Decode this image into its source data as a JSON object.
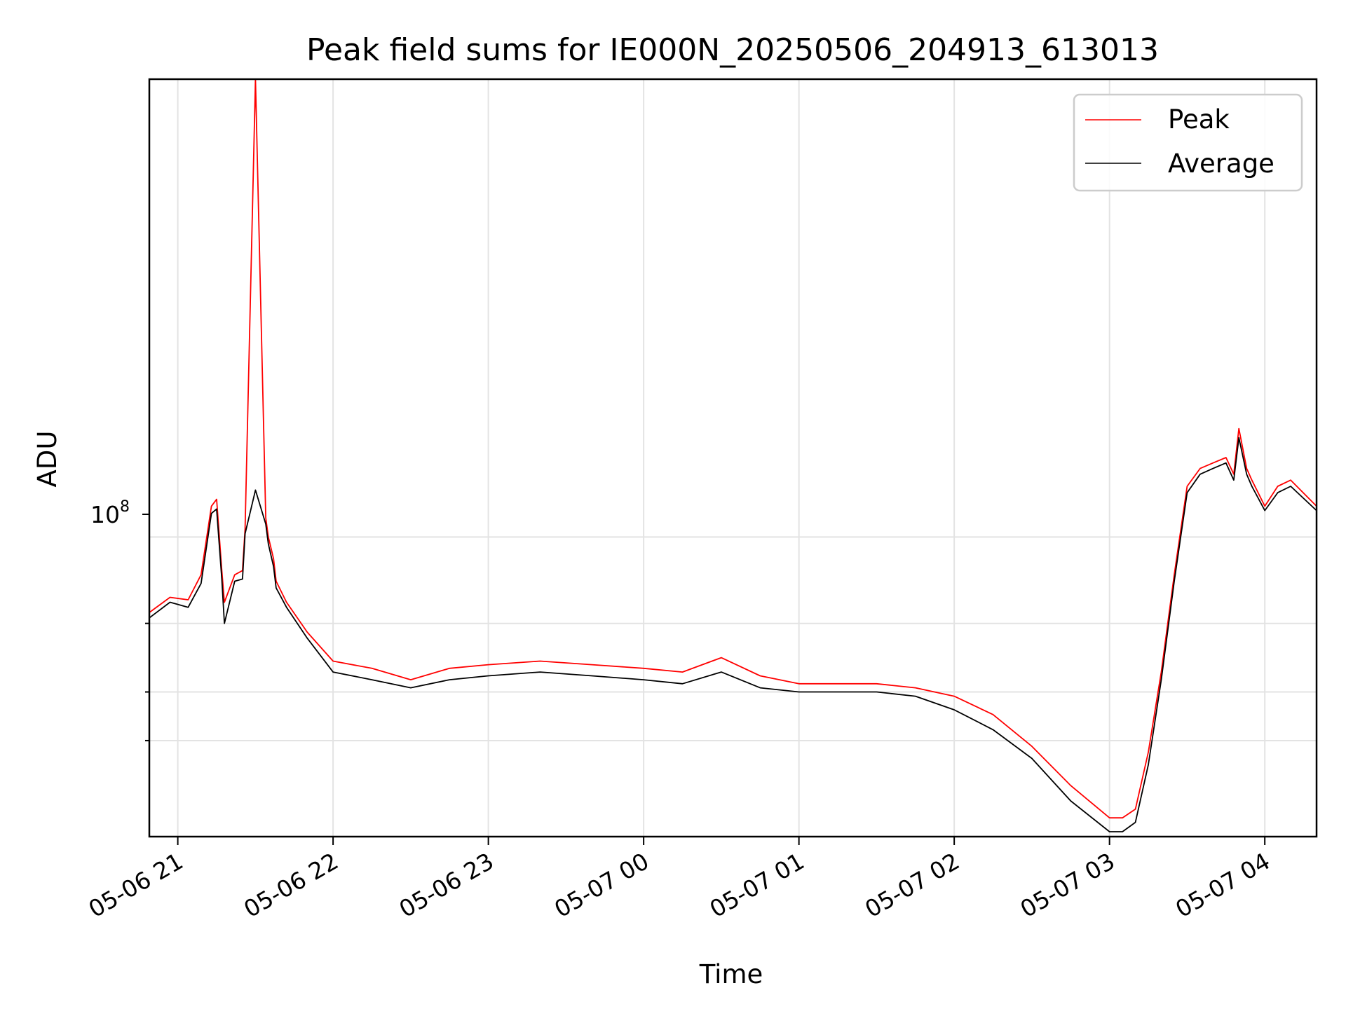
{
  "chart_data": {
    "type": "line",
    "title": "Peak field sums for IE000N_20250506_204913_613013",
    "xlabel": "Time",
    "ylabel": "ADU",
    "x_ticks": [
      "05-06 21",
      "05-06 22",
      "05-06 23",
      "05-07 00",
      "05-07 01",
      "05-07 02",
      "05-07 03",
      "05-07 04"
    ],
    "y_tick_label": "10",
    "y_tick_exponent": "8",
    "y_scale": "log",
    "xlim": [
      "2025-05-06 20:49",
      "2025-05-07 04:20"
    ],
    "ylim": [
      17000000,
      1500000000
    ],
    "grid": true,
    "legend_position": "top-right",
    "series": [
      {
        "name": "Peak",
        "color": "#ff0000",
        "x": [
          "2025-05-06 20:49",
          "2025-05-06 20:57",
          "2025-05-06 21:04",
          "2025-05-06 21:09",
          "2025-05-06 21:13",
          "2025-05-06 21:15",
          "2025-05-06 21:17",
          "2025-05-06 21:18",
          "2025-05-06 21:22",
          "2025-05-06 21:25",
          "2025-05-06 21:26",
          "2025-05-06 21:30",
          "2025-05-06 21:34",
          "2025-05-06 21:35",
          "2025-05-06 21:37",
          "2025-05-06 21:38",
          "2025-05-06 21:42",
          "2025-05-06 21:50",
          "2025-05-06 22:00",
          "2025-05-06 22:15",
          "2025-05-06 22:30",
          "2025-05-06 22:45",
          "2025-05-06 23:00",
          "2025-05-06 23:20",
          "2025-05-06 23:40",
          "2025-05-07 00:00",
          "2025-05-07 00:15",
          "2025-05-07 00:30",
          "2025-05-07 00:45",
          "2025-05-07 01:00",
          "2025-05-07 01:15",
          "2025-05-07 01:30",
          "2025-05-07 01:45",
          "2025-05-07 02:00",
          "2025-05-07 02:15",
          "2025-05-07 02:30",
          "2025-05-07 02:45",
          "2025-05-07 03:00",
          "2025-05-07 03:05",
          "2025-05-07 03:10",
          "2025-05-07 03:15",
          "2025-05-07 03:20",
          "2025-05-07 03:25",
          "2025-05-07 03:30",
          "2025-05-07 03:35",
          "2025-05-07 03:40",
          "2025-05-07 03:45",
          "2025-05-07 03:48",
          "2025-05-07 03:50",
          "2025-05-07 03:53",
          "2025-05-07 03:55",
          "2025-05-07 04:00",
          "2025-05-07 04:05",
          "2025-05-07 04:10",
          "2025-05-07 04:20"
        ],
        "values": [
          64000000,
          70000000,
          69000000,
          80000000,
          120000000,
          125000000,
          82000000,
          68000000,
          80000000,
          82000000,
          105000000,
          1500000000,
          112000000,
          100000000,
          88000000,
          77000000,
          68000000,
          57000000,
          48000000,
          46000000,
          43000000,
          46000000,
          47000000,
          48000000,
          47000000,
          46000000,
          45000000,
          49000000,
          44000000,
          42000000,
          42000000,
          42000000,
          41000000,
          39000000,
          35000000,
          29000000,
          23000000,
          19000000,
          19000000,
          20000000,
          28000000,
          45000000,
          80000000,
          135000000,
          150000000,
          155000000,
          160000000,
          145000000,
          190000000,
          150000000,
          140000000,
          120000000,
          135000000,
          140000000,
          120000000
        ]
      },
      {
        "name": "Average",
        "color": "#000000",
        "x": [
          "2025-05-06 20:49",
          "2025-05-06 20:57",
          "2025-05-06 21:04",
          "2025-05-06 21:09",
          "2025-05-06 21:13",
          "2025-05-06 21:15",
          "2025-05-06 21:17",
          "2025-05-06 21:18",
          "2025-05-06 21:22",
          "2025-05-06 21:25",
          "2025-05-06 21:26",
          "2025-05-06 21:30",
          "2025-05-06 21:34",
          "2025-05-06 21:35",
          "2025-05-06 21:37",
          "2025-05-06 21:38",
          "2025-05-06 21:42",
          "2025-05-06 21:50",
          "2025-05-06 22:00",
          "2025-05-06 22:15",
          "2025-05-06 22:30",
          "2025-05-06 22:45",
          "2025-05-06 23:00",
          "2025-05-06 23:20",
          "2025-05-06 23:40",
          "2025-05-07 00:00",
          "2025-05-07 00:15",
          "2025-05-07 00:30",
          "2025-05-07 00:45",
          "2025-05-07 01:00",
          "2025-05-07 01:15",
          "2025-05-07 01:30",
          "2025-05-07 01:45",
          "2025-05-07 02:00",
          "2025-05-07 02:15",
          "2025-05-07 02:30",
          "2025-05-07 02:45",
          "2025-05-07 03:00",
          "2025-05-07 03:05",
          "2025-05-07 03:10",
          "2025-05-07 03:15",
          "2025-05-07 03:20",
          "2025-05-07 03:25",
          "2025-05-07 03:30",
          "2025-05-07 03:35",
          "2025-05-07 03:40",
          "2025-05-07 03:45",
          "2025-05-07 03:48",
          "2025-05-07 03:50",
          "2025-05-07 03:53",
          "2025-05-07 03:55",
          "2025-05-07 04:00",
          "2025-05-07 04:05",
          "2025-05-07 04:10",
          "2025-05-07 04:20"
        ],
        "values": [
          62000000,
          68000000,
          66000000,
          76000000,
          115000000,
          118000000,
          78000000,
          60000000,
          77000000,
          78000000,
          102000000,
          132000000,
          108000000,
          96000000,
          84000000,
          74000000,
          66000000,
          55000000,
          45000000,
          43000000,
          41000000,
          43000000,
          44000000,
          45000000,
          44000000,
          43000000,
          42000000,
          45000000,
          41000000,
          40000000,
          40000000,
          40000000,
          39000000,
          36000000,
          32000000,
          27000000,
          21000000,
          17500000,
          17500000,
          18500000,
          26000000,
          43000000,
          77000000,
          130000000,
          145000000,
          150000000,
          155000000,
          140000000,
          180000000,
          145000000,
          135000000,
          117000000,
          130000000,
          135000000,
          117000000
        ]
      }
    ]
  }
}
